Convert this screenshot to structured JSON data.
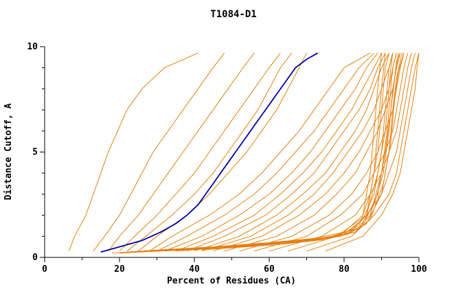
{
  "chart_data": {
    "type": "line",
    "title": "T1084-D1",
    "xlabel": "Percent of Residues (CA)",
    "ylabel": "Distance Cutoff, A",
    "xlim": [
      0,
      100
    ],
    "ylim": [
      0,
      10
    ],
    "x_major_ticks": [
      0,
      20,
      40,
      60,
      80,
      100
    ],
    "x_minor_step": 10,
    "y_major_ticks": [
      0,
      5,
      10
    ],
    "y_minor_step": 1,
    "grid": false,
    "legend": "none",
    "colors": {
      "models": "#e67f0d",
      "highlight": "#0000aa",
      "axis": "#000000"
    },
    "y_grid": [
      0.3,
      1,
      2,
      3,
      4,
      5,
      6,
      7,
      8,
      9,
      9.7
    ],
    "highlight_series": {
      "name": "highlighted-model",
      "y": [
        0.25,
        0.5,
        0.8,
        1.2,
        1.6,
        2,
        2.5,
        3,
        3.5,
        4,
        4.5,
        5,
        5.5,
        6,
        6.5,
        7,
        7.5,
        8,
        8.5,
        9,
        9.4,
        9.7
      ],
      "x": [
        15,
        20,
        26,
        31,
        35,
        38,
        41,
        43,
        45,
        47,
        49,
        51,
        53,
        55,
        57,
        59,
        61,
        63,
        65,
        67,
        70,
        73
      ]
    },
    "series": [
      {
        "x": [
          6.5,
          8,
          11,
          13,
          15,
          17,
          19.5,
          22,
          26,
          32,
          41
        ]
      },
      {
        "x": [
          13,
          16,
          20,
          23,
          26,
          29,
          33,
          37,
          41,
          45,
          48
        ]
      },
      {
        "x": [
          17,
          20,
          25,
          29,
          33,
          37,
          41,
          45,
          49,
          53,
          56
        ]
      },
      {
        "x": [
          20,
          24,
          30,
          35,
          40,
          44,
          48,
          52,
          56,
          60,
          63
        ]
      },
      {
        "x": [
          22,
          27,
          34,
          40,
          45,
          49,
          53,
          57,
          60,
          63,
          66
        ]
      },
      {
        "x": [
          25,
          30,
          38,
          44,
          49,
          54,
          58,
          62,
          65,
          68,
          70
        ]
      },
      {
        "x": [
          28,
          34,
          44,
          52,
          58,
          63,
          68,
          72,
          76,
          80,
          87
        ]
      },
      {
        "x": [
          30,
          38,
          48,
          56,
          62,
          67,
          72,
          76,
          80,
          84,
          88
        ]
      },
      {
        "x": [
          32,
          42,
          52,
          60,
          66,
          71,
          75,
          79,
          83,
          86,
          89
        ]
      },
      {
        "x": [
          35,
          45,
          56,
          63,
          69,
          74,
          78,
          82,
          85,
          88,
          90
        ]
      },
      {
        "x": [
          38,
          48,
          59,
          66,
          72,
          76,
          80,
          84,
          87,
          89,
          91
        ]
      },
      {
        "x": [
          40,
          52,
          62,
          69,
          75,
          79,
          83,
          86,
          88,
          90,
          92
        ]
      },
      {
        "x": [
          42,
          55,
          65,
          72,
          77,
          81,
          85,
          88,
          90,
          92,
          93
        ]
      },
      {
        "x": [
          45,
          58,
          68,
          75,
          80,
          84,
          87,
          90,
          92,
          93,
          94
        ]
      },
      {
        "x": [
          48,
          62,
          72,
          78,
          83,
          86,
          89,
          91,
          93,
          94,
          95
        ]
      },
      {
        "x": [
          52,
          66,
          76,
          82,
          86,
          89,
          91,
          93,
          94,
          95,
          96
        ]
      },
      {
        "x": [
          56,
          70,
          79,
          85,
          88,
          91,
          93,
          94,
          95,
          96,
          97
        ]
      },
      {
        "x": [
          60,
          74,
          83,
          87,
          90,
          92,
          94,
          95,
          96,
          97,
          98
        ]
      },
      {
        "x": [
          65,
          78,
          86,
          90,
          92,
          94,
          95,
          96,
          97,
          98,
          99
        ]
      },
      {
        "x": [
          70,
          82,
          88,
          92,
          94,
          95,
          96,
          97,
          98,
          99,
          100
        ]
      },
      {
        "x": [
          75,
          85,
          90,
          93,
          95,
          96,
          97,
          98,
          99,
          99.5,
          100
        ]
      },
      {
        "y": [
          0.2,
          0.35,
          0.5,
          0.7,
          0.9,
          1.2,
          2,
          4,
          6,
          8,
          9.7
        ],
        "x": [
          18,
          30,
          45,
          60,
          72,
          80,
          85,
          87,
          88,
          89,
          90
        ]
      },
      {
        "y": [
          0.2,
          0.35,
          0.5,
          0.7,
          0.9,
          1.3,
          2,
          4,
          6,
          8,
          9.7
        ],
        "x": [
          20,
          34,
          50,
          64,
          75,
          82,
          86,
          88,
          89,
          90,
          91
        ]
      },
      {
        "y": [
          0.25,
          0.4,
          0.6,
          0.8,
          1,
          1.5,
          3,
          5,
          7,
          9,
          9.7
        ],
        "x": [
          22,
          38,
          54,
          68,
          78,
          84,
          87,
          89,
          90,
          91,
          92
        ]
      },
      {
        "y": [
          0.25,
          0.4,
          0.6,
          0.8,
          1.1,
          1.8,
          3,
          5,
          7,
          9,
          9.7
        ],
        "x": [
          25,
          42,
          58,
          70,
          80,
          85,
          88,
          90,
          91,
          92,
          93
        ]
      },
      {
        "y": [
          0.3,
          0.45,
          0.65,
          0.85,
          1.1,
          2,
          4,
          6,
          8,
          9,
          9.7
        ],
        "x": [
          28,
          45,
          60,
          73,
          81,
          86,
          89,
          91,
          92,
          92.5,
          93
        ]
      },
      {
        "y": [
          0.3,
          0.5,
          0.7,
          0.9,
          1.2,
          2,
          4,
          6,
          8,
          9,
          9.7
        ],
        "x": [
          32,
          48,
          63,
          75,
          83,
          87,
          90,
          91.5,
          92.5,
          93,
          94
        ]
      },
      {
        "y": [
          0.3,
          0.5,
          0.7,
          1,
          1.4,
          2.5,
          4,
          6,
          8,
          9,
          9.7
        ],
        "x": [
          35,
          52,
          66,
          77,
          84,
          88,
          90.5,
          92,
          93,
          94,
          94.5
        ]
      },
      {
        "y": [
          0.35,
          0.55,
          0.75,
          1,
          1.5,
          3,
          5,
          7,
          8.5,
          9.3,
          9.7
        ],
        "x": [
          38,
          55,
          69,
          79,
          85,
          89,
          91,
          92.5,
          93.5,
          94,
          95
        ]
      },
      {
        "y": [
          0.35,
          0.6,
          0.8,
          1.1,
          1.6,
          3,
          5,
          7,
          8.5,
          9.3,
          9.7
        ],
        "x": [
          42,
          58,
          72,
          81,
          86,
          90,
          92,
          93,
          94,
          95,
          95.5
        ]
      },
      {
        "y": [
          0.4,
          0.6,
          0.85,
          1.2,
          1.8,
          3.5,
          5.5,
          7.5,
          8.8,
          9.4,
          9.7
        ],
        "x": [
          45,
          62,
          75,
          83,
          87,
          90.5,
          92.5,
          93.5,
          94.5,
          95.5,
          96
        ]
      }
    ]
  }
}
